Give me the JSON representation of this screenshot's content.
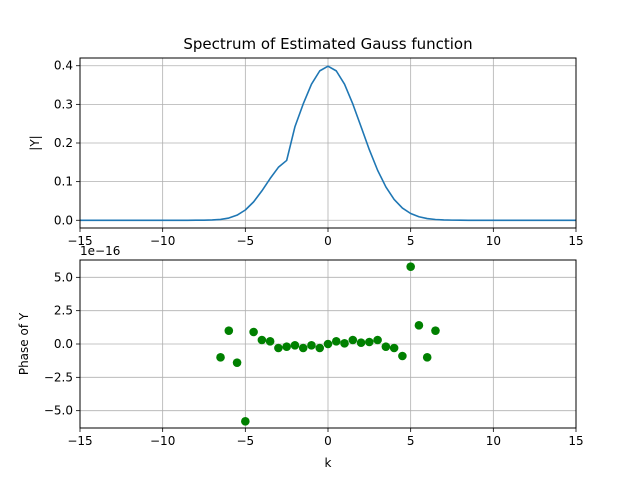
{
  "chart_data": [
    {
      "type": "line",
      "title": "Spectrum of Estimated Gauss function",
      "xlabel": "",
      "ylabel": "|Y|",
      "xlim": [
        -15,
        15
      ],
      "ylim": [
        -0.02,
        0.42
      ],
      "xticks": [
        -15,
        -10,
        -5,
        0,
        5,
        10,
        15
      ],
      "xtick_labels": [
        "−15",
        "−10",
        "−5",
        "0",
        "5",
        "10",
        "15"
      ],
      "yticks": [
        0.0,
        0.1,
        0.2,
        0.3,
        0.4
      ],
      "ytick_labels": [
        "0.0",
        "0.1",
        "0.2",
        "0.3",
        "0.4"
      ],
      "grid": true,
      "series": [
        {
          "color": "#1f77b4",
          "x": [
            -15,
            -14.5,
            -14,
            -13.5,
            -13,
            -12.5,
            -12,
            -11.5,
            -11,
            -10.5,
            -10,
            -9.5,
            -9,
            -8.5,
            -8,
            -7.5,
            -7,
            -6.5,
            -6,
            -5.5,
            -5,
            -4.5,
            -4,
            -3.5,
            -3,
            -2.5,
            -2,
            -1.5,
            -1,
            -0.5,
            0,
            0.5,
            1,
            1.5,
            2,
            2.5,
            3,
            3.5,
            4,
            4.5,
            5,
            5.5,
            6,
            6.5,
            7,
            7.5,
            8,
            8.5,
            9,
            9.5,
            10,
            10.5,
            11,
            11.5,
            12,
            12.5,
            13,
            13.5,
            14,
            14.5,
            15
          ],
          "y": [
            0,
            0,
            0,
            0,
            0,
            0,
            0,
            0,
            0,
            0,
            0,
            0,
            0,
            0,
            0.0001,
            0.0002,
            0.0008,
            0.0022,
            0.0058,
            0.0132,
            0.0266,
            0.0476,
            0.076,
            0.1081,
            0.1371,
            0.1549,
            0.242,
            0.301,
            0.3521,
            0.3867,
            0.3989,
            0.3867,
            0.3521,
            0.301,
            0.242,
            0.1826,
            0.1295,
            0.0863,
            0.054,
            0.0317,
            0.0175,
            0.0091,
            0.0044,
            0.002,
            0.0009,
            0.0004,
            0.0001,
            0,
            0,
            0,
            0,
            0,
            0,
            0,
            0,
            0,
            0,
            0,
            0,
            0,
            0
          ]
        }
      ]
    },
    {
      "type": "scatter",
      "title": "",
      "xlabel": "k",
      "ylabel": "Phase of Y",
      "offset_label": "1e−16",
      "xlim": [
        -15,
        15
      ],
      "ylim": [
        -6.3,
        6.3
      ],
      "xticks": [
        -15,
        -10,
        -5,
        0,
        5,
        10,
        15
      ],
      "xtick_labels": [
        "−15",
        "−10",
        "−5",
        "0",
        "5",
        "10",
        "15"
      ],
      "yticks": [
        -5.0,
        -2.5,
        0.0,
        2.5,
        5.0
      ],
      "ytick_labels": [
        "−5.0",
        "−2.5",
        "0.0",
        "2.5",
        "5.0"
      ],
      "grid": true,
      "series": [
        {
          "color": "#008000",
          "x": [
            -6.5,
            -6,
            -5.5,
            -5,
            -4.5,
            -4,
            -3.5,
            -3,
            -2.5,
            -2,
            -1.5,
            -1,
            -0.5,
            0,
            0.5,
            1,
            1.5,
            2,
            2.5,
            3,
            3.5,
            4,
            4.5,
            5,
            5.5,
            6,
            6.5
          ],
          "y": [
            -1.0,
            1.0,
            -1.4,
            -5.8,
            0.9,
            0.3,
            0.2,
            -0.3,
            -0.2,
            -0.1,
            -0.3,
            -0.1,
            -0.3,
            0.0,
            0.2,
            0.05,
            0.3,
            0.1,
            0.15,
            0.3,
            -0.2,
            -0.3,
            -0.9,
            5.8,
            1.4,
            -1.0,
            1.0
          ]
        }
      ]
    }
  ]
}
